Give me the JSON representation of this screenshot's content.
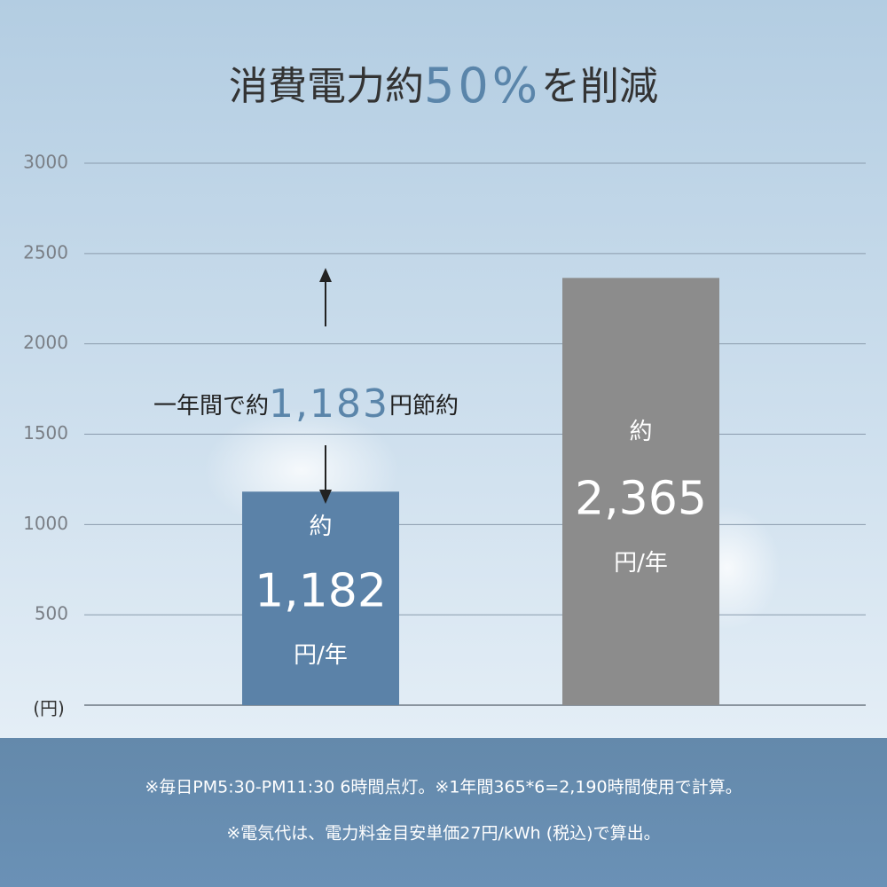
{
  "chart_data": {
    "type": "bar",
    "title": [
      "消費電力約",
      "50%",
      "を削減"
    ],
    "annotation": [
      "一年間で約",
      "1,183",
      "円節約"
    ],
    "categories": [
      null,
      null
    ],
    "values": [
      1182,
      2365
    ],
    "value_labels": [
      "1,182",
      "2,365"
    ],
    "value_prefix": "約",
    "value_unit": "円/年",
    "colors": [
      "#5b82a8",
      "#8c8c8c"
    ],
    "y_unit": "(円)",
    "ylim": [
      0,
      3000
    ],
    "yticks": [
      500,
      1000,
      1500,
      2000,
      2500,
      3000
    ],
    "grid": true
  },
  "footnotes": [
    "※毎日PM5:30-PM11:30 6時間点灯。※1年間365*6=2,190時間使用で計算。",
    "※電気代は、電力料金目安単価27円/kWh (税込)で算出。"
  ]
}
